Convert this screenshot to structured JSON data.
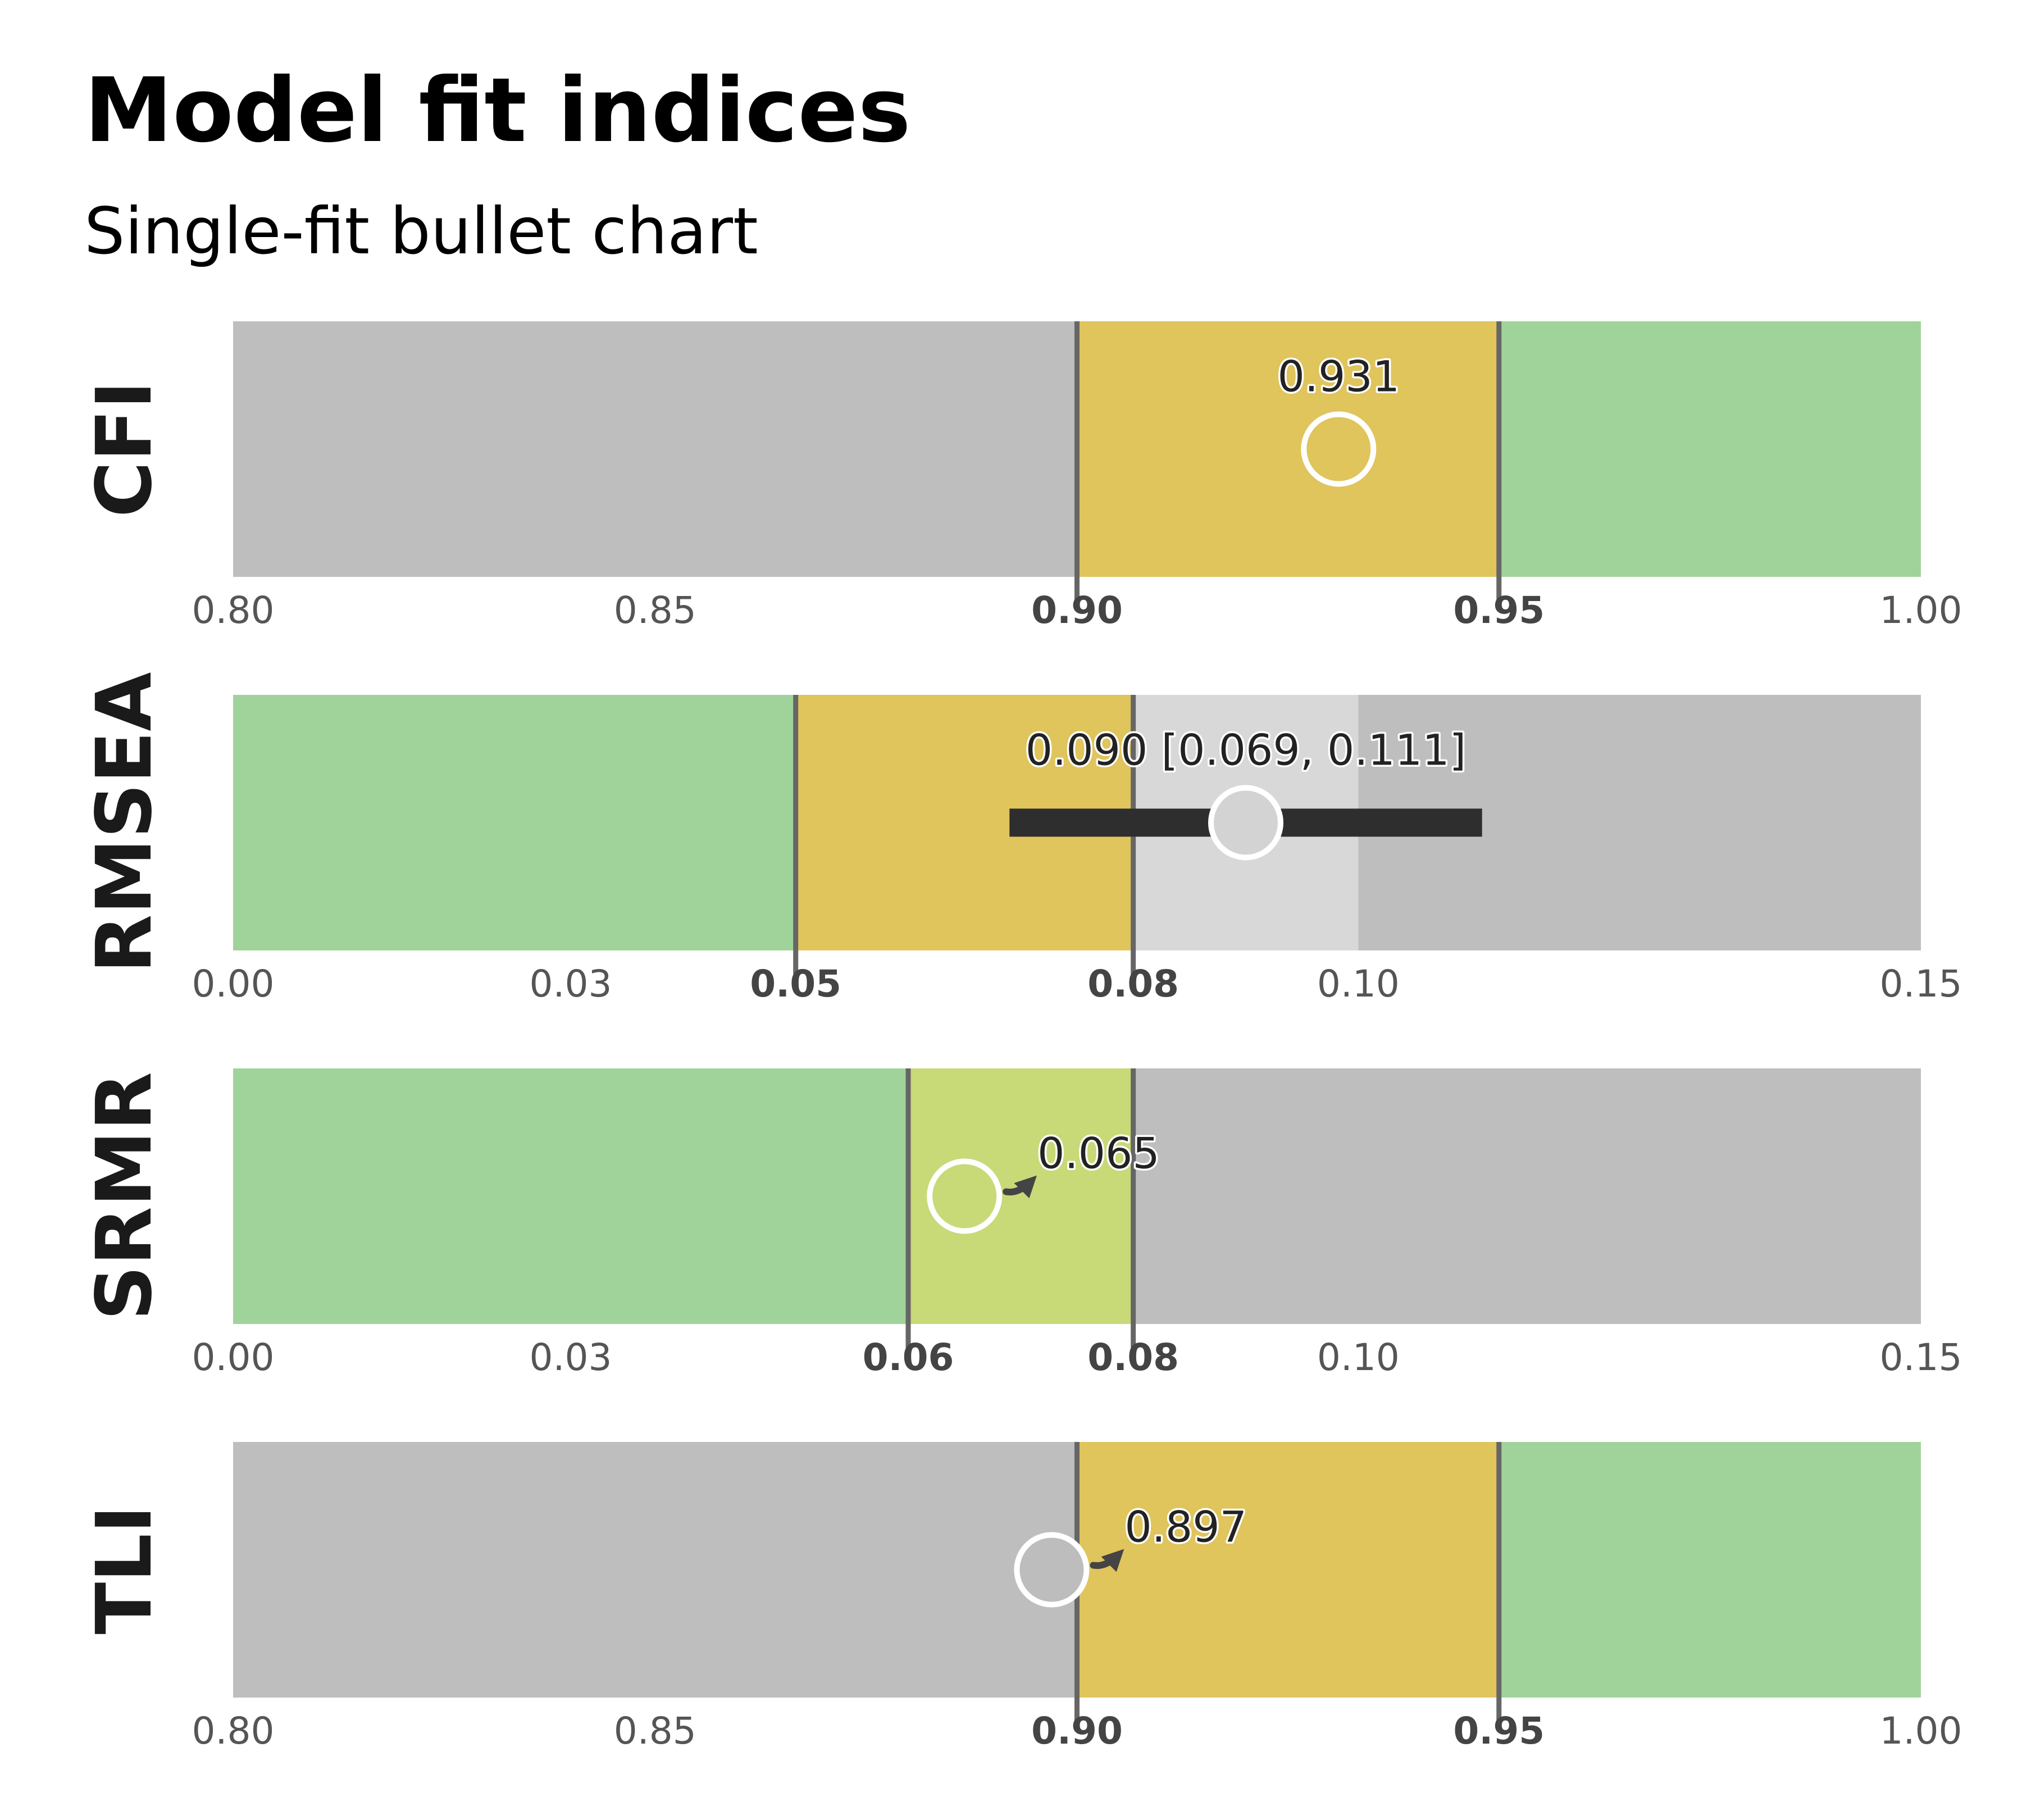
{
  "title": "Model fit indices",
  "subtitle": "Single-fit bullet chart",
  "colors": {
    "good": "#a0d39a",
    "acceptable": "#e0c45c",
    "acceptable_srmr": "#c8d978",
    "poor": "#bebebe",
    "mediocre": "#d8d8d8",
    "threshold_line": "#666666",
    "marker_fill": "#bdbdbd",
    "marker_stroke": "#ffffff",
    "ci_bar": "#2e2e2e",
    "axis_text": "#555555",
    "axis_text_strong": "#444444",
    "label_text": "#222222"
  },
  "chart_data": [
    {
      "type": "bullet",
      "index": "CFI",
      "xlim": [
        0.8,
        1.0
      ],
      "bands": [
        {
          "from": 0.8,
          "to": 0.9,
          "color": "#bebebe"
        },
        {
          "from": 0.9,
          "to": 0.95,
          "color": "#e0c45c"
        },
        {
          "from": 0.95,
          "to": 1.0,
          "color": "#a0d39a"
        }
      ],
      "thresholds": [
        0.9,
        0.95
      ],
      "value": 0.931,
      "marker_filled": false,
      "ci": null,
      "label": "0.931",
      "label_placement": "above",
      "ticks": [
        {
          "value": 0.8,
          "label": "0.80",
          "bold": false
        },
        {
          "value": 0.85,
          "label": "0.85",
          "bold": false
        },
        {
          "value": 0.9,
          "label": "0.90",
          "bold": true
        },
        {
          "value": 0.95,
          "label": "0.95",
          "bold": true
        },
        {
          "value": 1.0,
          "label": "1.00",
          "bold": false
        }
      ]
    },
    {
      "type": "bullet",
      "index": "RMSEA",
      "xlim": [
        0.0,
        0.15
      ],
      "bands": [
        {
          "from": 0.0,
          "to": 0.05,
          "color": "#a0d39a"
        },
        {
          "from": 0.05,
          "to": 0.08,
          "color": "#e0c45c"
        },
        {
          "from": 0.08,
          "to": 0.1,
          "color": "#d8d8d8"
        },
        {
          "from": 0.1,
          "to": 0.15,
          "color": "#bebebe"
        }
      ],
      "thresholds": [
        0.05,
        0.08
      ],
      "value": 0.09,
      "marker_filled": true,
      "ci": [
        0.069,
        0.111
      ],
      "label": "0.090 [0.069, 0.111]",
      "label_placement": "above",
      "ticks": [
        {
          "value": 0.0,
          "label": "0.00",
          "bold": false
        },
        {
          "value": 0.03,
          "label": "0.03",
          "bold": false
        },
        {
          "value": 0.05,
          "label": "0.05",
          "bold": true
        },
        {
          "value": 0.08,
          "label": "0.08",
          "bold": true
        },
        {
          "value": 0.1,
          "label": "0.10",
          "bold": false
        },
        {
          "value": 0.15,
          "label": "0.15",
          "bold": false
        }
      ]
    },
    {
      "type": "bullet",
      "index": "SRMR",
      "xlim": [
        0.0,
        0.15
      ],
      "bands": [
        {
          "from": 0.0,
          "to": 0.06,
          "color": "#a0d39a"
        },
        {
          "from": 0.06,
          "to": 0.08,
          "color": "#c8d978"
        },
        {
          "from": 0.08,
          "to": 0.15,
          "color": "#bebebe"
        }
      ],
      "thresholds": [
        0.06,
        0.08
      ],
      "value": 0.065,
      "marker_filled": false,
      "ci": null,
      "label": "0.065",
      "label_placement": "arrow",
      "ticks": [
        {
          "value": 0.0,
          "label": "0.00",
          "bold": false
        },
        {
          "value": 0.03,
          "label": "0.03",
          "bold": false
        },
        {
          "value": 0.06,
          "label": "0.06",
          "bold": true
        },
        {
          "value": 0.08,
          "label": "0.08",
          "bold": true
        },
        {
          "value": 0.1,
          "label": "0.10",
          "bold": false
        },
        {
          "value": 0.15,
          "label": "0.15",
          "bold": false
        }
      ]
    },
    {
      "type": "bullet",
      "index": "TLI",
      "xlim": [
        0.8,
        1.0
      ],
      "bands": [
        {
          "from": 0.8,
          "to": 0.9,
          "color": "#bebebe"
        },
        {
          "from": 0.9,
          "to": 0.95,
          "color": "#e0c45c"
        },
        {
          "from": 0.95,
          "to": 1.0,
          "color": "#a0d39a"
        }
      ],
      "thresholds": [
        0.9,
        0.95
      ],
      "value": 0.897,
      "marker_filled": true,
      "ci": null,
      "label": "0.897",
      "label_placement": "arrow",
      "ticks": [
        {
          "value": 0.8,
          "label": "0.80",
          "bold": false
        },
        {
          "value": 0.85,
          "label": "0.85",
          "bold": false
        },
        {
          "value": 0.9,
          "label": "0.90",
          "bold": true
        },
        {
          "value": 0.95,
          "label": "0.95",
          "bold": true
        },
        {
          "value": 1.0,
          "label": "1.00",
          "bold": false
        }
      ]
    }
  ]
}
